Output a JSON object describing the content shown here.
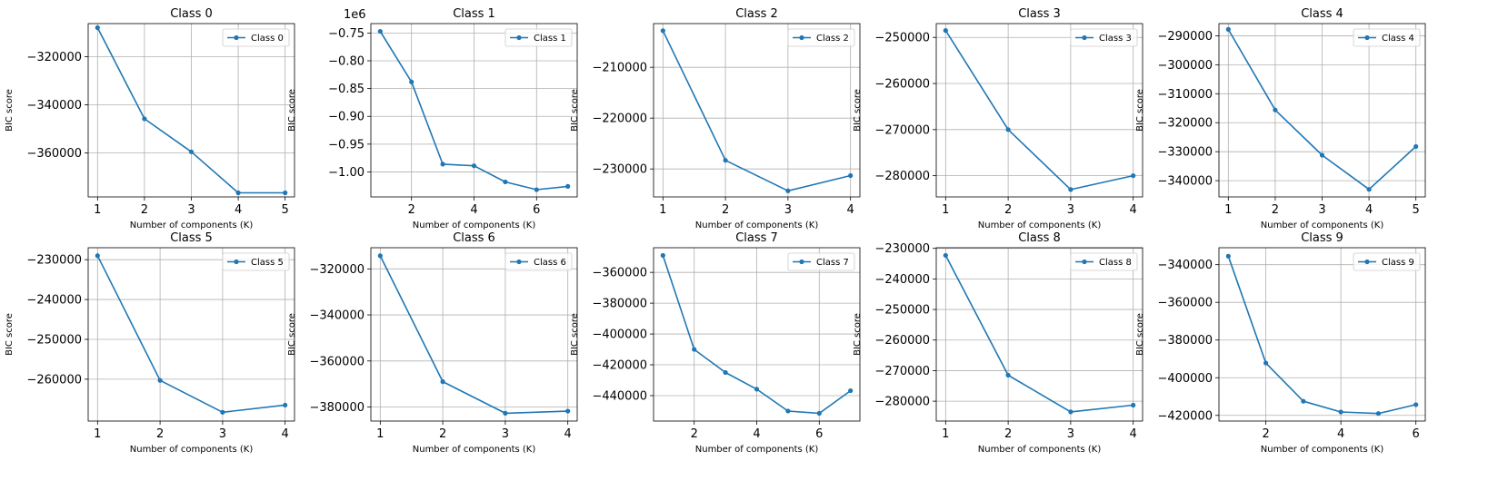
{
  "colors": {
    "series": "#1f77b4",
    "grid": "#b0b0b0"
  },
  "chart_data": [
    {
      "type": "line",
      "title": "Class 0",
      "xlabel": "Number of components (K)",
      "ylabel": "BIC score",
      "legend": "upper right",
      "grid": true,
      "offset_text": "",
      "x": [
        1,
        2,
        3,
        4,
        5
      ],
      "xlim": [
        0.8,
        5.2
      ],
      "xticks": [
        1,
        2,
        3,
        4,
        5
      ],
      "xtick_labels": [
        "1",
        "2",
        "3",
        "4",
        "5"
      ],
      "ylim": [
        -378200,
        -306300
      ],
      "yticks": [
        -320000,
        -340000,
        -360000
      ],
      "ytick_labels": [
        "−320000",
        "−340000",
        "−360000"
      ],
      "series": [
        {
          "name": "Class 0",
          "values": [
            -308000,
            -345800,
            -359500,
            -376500,
            -376500
          ]
        }
      ]
    },
    {
      "type": "line",
      "title": "Class 1",
      "xlabel": "Number of components (K)",
      "ylabel": "BIC score",
      "legend": "upper right",
      "grid": true,
      "offset_text": "1e6",
      "x": [
        1,
        2,
        3,
        4,
        5,
        6,
        7
      ],
      "xlim": [
        0.7,
        7.3
      ],
      "xticks": [
        2,
        4,
        6
      ],
      "xtick_labels": [
        "2",
        "4",
        "6"
      ],
      "ylim": [
        -1.045,
        -0.733
      ],
      "yticks": [
        -0.75,
        -0.8,
        -0.85,
        -0.9,
        -0.95,
        -1.0
      ],
      "ytick_labels": [
        "−0.75",
        "−0.80",
        "−0.85",
        "−0.90",
        "−0.95",
        "−1.00"
      ],
      "series": [
        {
          "name": "Class 1",
          "values": [
            -0.747,
            -0.838,
            -0.986,
            -0.989,
            -1.018,
            -1.032,
            -1.026
          ]
        }
      ]
    },
    {
      "type": "line",
      "title": "Class 2",
      "xlabel": "Number of components (K)",
      "ylabel": "BIC score",
      "legend": "upper right",
      "grid": true,
      "offset_text": "",
      "x": [
        1,
        2,
        3,
        4
      ],
      "xlim": [
        0.85,
        4.15
      ],
      "xticks": [
        1,
        2,
        3,
        4
      ],
      "xtick_labels": [
        "1",
        "2",
        "3",
        "4"
      ],
      "ylim": [
        -235500,
        -201400
      ],
      "yticks": [
        -210000,
        -220000,
        -230000
      ],
      "ytick_labels": [
        "−210000",
        "−220000",
        "−230000"
      ],
      "series": [
        {
          "name": "Class 2",
          "values": [
            -202800,
            -228300,
            -234300,
            -231300
          ]
        }
      ]
    },
    {
      "type": "line",
      "title": "Class 3",
      "xlabel": "Number of components (K)",
      "ylabel": "BIC score",
      "legend": "upper right",
      "grid": true,
      "offset_text": "",
      "x": [
        1,
        2,
        3,
        4
      ],
      "xlim": [
        0.85,
        4.15
      ],
      "xticks": [
        1,
        2,
        3,
        4
      ],
      "xtick_labels": [
        "1",
        "2",
        "3",
        "4"
      ],
      "ylim": [
        -284600,
        -247000
      ],
      "yticks": [
        -250000,
        -260000,
        -270000,
        -280000
      ],
      "ytick_labels": [
        "−250000",
        "−260000",
        "−270000",
        "−280000"
      ],
      "series": [
        {
          "name": "Class 3",
          "values": [
            -248500,
            -270000,
            -283000,
            -280000
          ]
        }
      ]
    },
    {
      "type": "line",
      "title": "Class 4",
      "xlabel": "Number of components (K)",
      "ylabel": "BIC score",
      "legend": "upper right",
      "grid": true,
      "offset_text": "",
      "x": [
        1,
        2,
        3,
        4,
        5
      ],
      "xlim": [
        0.8,
        5.2
      ],
      "xticks": [
        1,
        2,
        3,
        4,
        5
      ],
      "xtick_labels": [
        "1",
        "2",
        "3",
        "4",
        "5"
      ],
      "ylim": [
        -345600,
        -285800
      ],
      "yticks": [
        -290000,
        -300000,
        -310000,
        -320000,
        -330000,
        -340000
      ],
      "ytick_labels": [
        "−290000",
        "−300000",
        "−310000",
        "−320000",
        "−330000",
        "−340000"
      ],
      "series": [
        {
          "name": "Class 4",
          "values": [
            -287800,
            -315600,
            -331200,
            -343000,
            -328200
          ]
        }
      ]
    },
    {
      "type": "line",
      "title": "Class 5",
      "xlabel": "Number of components (K)",
      "ylabel": "BIC score",
      "legend": "upper right",
      "grid": true,
      "offset_text": "",
      "x": [
        1,
        2,
        3,
        4
      ],
      "xlim": [
        0.85,
        4.15
      ],
      "xticks": [
        1,
        2,
        3,
        4
      ],
      "xtick_labels": [
        "1",
        "2",
        "3",
        "4"
      ],
      "ylim": [
        -270500,
        -227000
      ],
      "yticks": [
        -230000,
        -240000,
        -250000,
        -260000
      ],
      "ytick_labels": [
        "−230000",
        "−240000",
        "−250000",
        "−260000"
      ],
      "series": [
        {
          "name": "Class 5",
          "values": [
            -229000,
            -260300,
            -268300,
            -266500
          ]
        }
      ]
    },
    {
      "type": "line",
      "title": "Class 6",
      "xlabel": "Number of components (K)",
      "ylabel": "BIC score",
      "legend": "upper right",
      "grid": true,
      "offset_text": "",
      "x": [
        1,
        2,
        3,
        4
      ],
      "xlim": [
        0.85,
        4.15
      ],
      "xticks": [
        1,
        2,
        3,
        4
      ],
      "xtick_labels": [
        "1",
        "2",
        "3",
        "4"
      ],
      "ylim": [
        -386100,
        -310800
      ],
      "yticks": [
        -320000,
        -340000,
        -360000,
        -380000
      ],
      "ytick_labels": [
        "−320000",
        "−340000",
        "−360000",
        "−380000"
      ],
      "series": [
        {
          "name": "Class 6",
          "values": [
            -314300,
            -369000,
            -382700,
            -381800
          ]
        }
      ]
    },
    {
      "type": "line",
      "title": "Class 7",
      "xlabel": "Number of components (K)",
      "ylabel": "BIC score",
      "legend": "upper right",
      "grid": true,
      "offset_text": "",
      "x": [
        1,
        2,
        3,
        4,
        5,
        6,
        7
      ],
      "xlim": [
        0.7,
        7.3
      ],
      "xticks": [
        2,
        4,
        6
      ],
      "xtick_labels": [
        "2",
        "4",
        "6"
      ],
      "ylim": [
        -456500,
        -344000
      ],
      "yticks": [
        -360000,
        -380000,
        -400000,
        -420000,
        -440000
      ],
      "ytick_labels": [
        "−360000",
        "−380000",
        "−400000",
        "−420000",
        "−440000"
      ],
      "series": [
        {
          "name": "Class 7",
          "values": [
            -349000,
            -410000,
            -425000,
            -435800,
            -450000,
            -451500,
            -436800
          ]
        }
      ]
    },
    {
      "type": "line",
      "title": "Class 8",
      "xlabel": "Number of components (K)",
      "ylabel": "BIC score",
      "legend": "upper right",
      "grid": true,
      "offset_text": "",
      "x": [
        1,
        2,
        3,
        4
      ],
      "xlim": [
        0.85,
        4.15
      ],
      "xticks": [
        1,
        2,
        3,
        4
      ],
      "xtick_labels": [
        "1",
        "2",
        "3",
        "4"
      ],
      "ylim": [
        -286500,
        -229800
      ],
      "yticks": [
        -230000,
        -240000,
        -250000,
        -260000,
        -270000,
        -280000
      ],
      "ytick_labels": [
        "−230000",
        "−240000",
        "−250000",
        "−260000",
        "−270000",
        "−280000"
      ],
      "series": [
        {
          "name": "Class 8",
          "values": [
            -232300,
            -271500,
            -283500,
            -281300
          ]
        }
      ]
    },
    {
      "type": "line",
      "title": "Class 9",
      "xlabel": "Number of components (K)",
      "ylabel": "BIC score",
      "legend": "upper right",
      "grid": true,
      "offset_text": "",
      "x": [
        1,
        2,
        3,
        4,
        5,
        6
      ],
      "xlim": [
        0.75,
        6.25
      ],
      "xticks": [
        2,
        4,
        6
      ],
      "xtick_labels": [
        "2",
        "4",
        "6"
      ],
      "ylim": [
        -423000,
        -331000
      ],
      "yticks": [
        -340000,
        -360000,
        -380000,
        -400000,
        -420000
      ],
      "ytick_labels": [
        "−340000",
        "−360000",
        "−380000",
        "−400000",
        "−420000"
      ],
      "series": [
        {
          "name": "Class 9",
          "values": [
            -335500,
            -392200,
            -412500,
            -418200,
            -419000,
            -414300
          ]
        }
      ]
    }
  ]
}
